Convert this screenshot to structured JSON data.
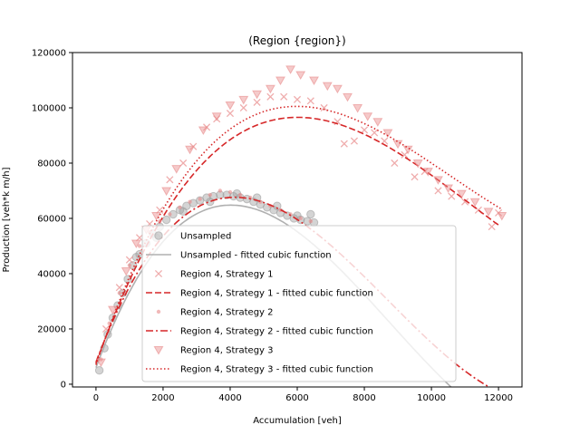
{
  "chart_data": {
    "type": "scatter",
    "title": "(Region {region})",
    "xlabel": "Accumulation [veh]",
    "ylabel": "Production [veh*k m/h]",
    "xlim": [
      -700,
      12700
    ],
    "ylim": [
      -1000,
      120000
    ],
    "xticks": [
      0,
      2000,
      4000,
      6000,
      8000,
      10000,
      12000
    ],
    "xtick_labels": [
      "0",
      "2000",
      "4000",
      "6000",
      "8000",
      "10000",
      "12000"
    ],
    "yticks": [
      0,
      20000,
      40000,
      60000,
      80000,
      100000,
      120000
    ],
    "ytick_labels": [
      "0",
      "20000",
      "40000",
      "60000",
      "80000",
      "100000",
      "120000"
    ],
    "grid": false,
    "legend_position": "lower-center",
    "colors": {
      "unsampled": "#b0b0b0",
      "region": "#d62728"
    },
    "series": [
      {
        "name": "Unsampled",
        "kind": "scatter",
        "marker": "circle",
        "color": "#a0a0a0",
        "points": [
          [
            100,
            5000
          ],
          [
            250,
            13000
          ],
          [
            350,
            18000
          ],
          [
            500,
            24000
          ],
          [
            650,
            28500
          ],
          [
            800,
            33000
          ],
          [
            950,
            38000
          ],
          [
            1100,
            43000
          ],
          [
            1300,
            47000
          ],
          [
            1500,
            51000
          ],
          [
            1700,
            54500
          ],
          [
            1900,
            57000
          ],
          [
            2100,
            59500
          ],
          [
            2300,
            61500
          ],
          [
            2500,
            63000
          ],
          [
            2700,
            64500
          ],
          [
            2900,
            65500
          ],
          [
            3100,
            66500
          ],
          [
            3300,
            67500
          ],
          [
            3500,
            68000
          ],
          [
            3700,
            68500
          ],
          [
            3900,
            68500
          ],
          [
            4100,
            68000
          ],
          [
            4300,
            67500
          ],
          [
            4500,
            67000
          ],
          [
            4700,
            66000
          ],
          [
            4900,
            65000
          ],
          [
            5100,
            64000
          ],
          [
            5300,
            63000
          ],
          [
            5500,
            62000
          ],
          [
            5700,
            61000
          ],
          [
            5900,
            60000
          ],
          [
            6100,
            59500
          ],
          [
            6300,
            59000
          ],
          [
            6500,
            58500
          ],
          [
            1200,
            46000
          ],
          [
            1800,
            53000
          ],
          [
            2600,
            62500
          ],
          [
            3400,
            66000
          ],
          [
            4200,
            69000
          ],
          [
            4800,
            67500
          ],
          [
            5400,
            64500
          ],
          [
            6000,
            61000
          ],
          [
            6400,
            61500
          ]
        ]
      },
      {
        "name": "Unsampled - fitted cubic function",
        "kind": "line",
        "dash": "solid",
        "color": "#b0b0b0",
        "coefficients": [
          6000,
          32.5,
          -0.00525,
          2e-07
        ],
        "x_range": [
          0,
          12100
        ]
      },
      {
        "name": "Region 4, Strategy 1",
        "kind": "scatter",
        "marker": "x",
        "color": "#e88a8a",
        "points": [
          [
            300,
            20000
          ],
          [
            700,
            35000
          ],
          [
            1000,
            45000
          ],
          [
            1300,
            53000
          ],
          [
            1600,
            58000
          ],
          [
            1900,
            63000
          ],
          [
            2200,
            74000
          ],
          [
            2600,
            80000
          ],
          [
            2900,
            86000
          ],
          [
            3300,
            93000
          ],
          [
            3600,
            96000
          ],
          [
            4000,
            98000
          ],
          [
            4400,
            100000
          ],
          [
            4800,
            102000
          ],
          [
            5200,
            104000
          ],
          [
            5600,
            104000
          ],
          [
            6000,
            103000
          ],
          [
            6400,
            102500
          ],
          [
            6800,
            100000
          ],
          [
            7200,
            95000
          ],
          [
            7400,
            87000
          ],
          [
            7700,
            88000
          ],
          [
            8000,
            92000
          ],
          [
            8300,
            91000
          ],
          [
            8600,
            88000
          ],
          [
            8900,
            80000
          ],
          [
            9200,
            83000
          ],
          [
            9500,
            75000
          ],
          [
            9800,
            77000
          ],
          [
            10200,
            70000
          ],
          [
            10600,
            68000
          ],
          [
            11000,
            66000
          ],
          [
            11400,
            63000
          ],
          [
            11800,
            57000
          ],
          [
            12000,
            62000
          ]
        ]
      },
      {
        "name": "Region 4, Strategy 1 - fitted cubic function",
        "kind": "line",
        "dash": "dashed",
        "color": "#d62728",
        "coefficients": [
          7500,
          33.8,
          -0.00385,
          1.151e-07
        ],
        "x_range": [
          0,
          12100
        ]
      },
      {
        "name": "Region 4, Strategy 2",
        "kind": "scatter",
        "marker": "dot",
        "color": "#e88a8a",
        "points": [
          [
            150,
            9000
          ],
          [
            400,
            22000
          ],
          [
            700,
            33000
          ],
          [
            1000,
            43000
          ],
          [
            1300,
            50000
          ],
          [
            1600,
            55000
          ],
          [
            1900,
            59000
          ],
          [
            2200,
            61500
          ],
          [
            2500,
            64000
          ],
          [
            2800,
            66000
          ],
          [
            3100,
            67000
          ],
          [
            3400,
            68500
          ],
          [
            3700,
            70000
          ],
          [
            4000,
            69500
          ],
          [
            4300,
            68500
          ],
          [
            4600,
            67500
          ],
          [
            4900,
            66000
          ],
          [
            5200,
            64500
          ],
          [
            5500,
            63000
          ],
          [
            5800,
            61500
          ],
          [
            6100,
            60000
          ],
          [
            6400,
            59000
          ]
        ]
      },
      {
        "name": "Region 4, Strategy 2 - fitted cubic function",
        "kind": "line",
        "dash": "dashdot",
        "color": "#d62728",
        "coefficients": [
          8000,
          32.2,
          -0.00511,
          1.96e-07
        ],
        "x_range": [
          0,
          12100
        ]
      },
      {
        "name": "Region 4, Strategy 3",
        "kind": "scatter",
        "marker": "triangle-down",
        "color": "#e88a8a",
        "points": [
          [
            150,
            8000
          ],
          [
            500,
            27000
          ],
          [
            900,
            41000
          ],
          [
            1200,
            51000
          ],
          [
            1500,
            56000
          ],
          [
            1800,
            61000
          ],
          [
            2100,
            70000
          ],
          [
            2400,
            78000
          ],
          [
            2800,
            85000
          ],
          [
            3200,
            92000
          ],
          [
            3600,
            97000
          ],
          [
            4000,
            101000
          ],
          [
            4400,
            103000
          ],
          [
            4800,
            105000
          ],
          [
            5200,
            107000
          ],
          [
            5500,
            110000
          ],
          [
            5800,
            114000
          ],
          [
            6100,
            112000
          ],
          [
            6500,
            110000
          ],
          [
            6900,
            108000
          ],
          [
            7200,
            107000
          ],
          [
            7500,
            104000
          ],
          [
            7800,
            100000
          ],
          [
            8100,
            97000
          ],
          [
            8400,
            95000
          ],
          [
            8700,
            91000
          ],
          [
            9000,
            87000
          ],
          [
            9300,
            85000
          ],
          [
            9600,
            80000
          ],
          [
            9900,
            77000
          ],
          [
            10200,
            74000
          ],
          [
            10500,
            71000
          ],
          [
            10900,
            69000
          ],
          [
            11300,
            66000
          ],
          [
            11700,
            62500
          ],
          [
            12100,
            61000
          ]
        ]
      },
      {
        "name": "Region 4, Strategy 3 - fitted cubic function",
        "kind": "line",
        "dash": "dotted",
        "color": "#d62728",
        "coefficients": [
          7000,
          36,
          -0.0042,
          1.33e-07
        ],
        "x_range": [
          0,
          12100
        ]
      }
    ]
  }
}
